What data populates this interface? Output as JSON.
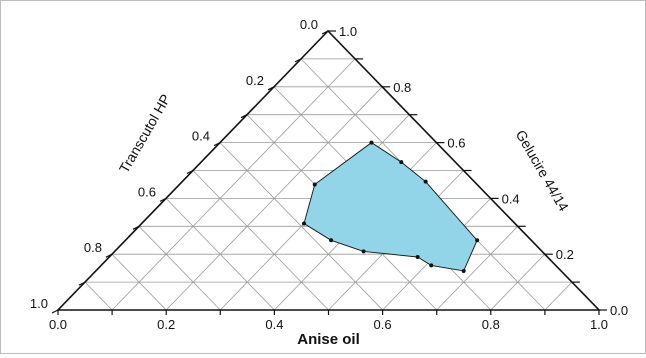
{
  "chart_data": {
    "type": "ternary",
    "axes": {
      "bottom": {
        "label": "Anise oil",
        "ticks": [
          "0.0",
          "0.2",
          "0.4",
          "0.6",
          "0.8",
          "1.0"
        ]
      },
      "left": {
        "label": "Transcutol HP",
        "ticks": [
          "0.0",
          "0.2",
          "0.4",
          "0.6",
          "0.8",
          "1.0"
        ]
      },
      "right": {
        "label": "Gelucire 44/14",
        "ticks": [
          "0.0",
          "0.2",
          "0.4",
          "0.6",
          "0.8",
          "1.0"
        ]
      }
    },
    "grid": true,
    "grid_step": 0.1,
    "region": {
      "fill_color": "#92d4e8",
      "points": [
        {
          "anise_oil": 0.25,
          "transcutol_hp": 0.3,
          "gelucire_44_14": 0.45
        },
        {
          "anise_oil": 0.3,
          "transcutol_hp": 0.39,
          "gelucire_44_14": 0.31
        },
        {
          "anise_oil": 0.38,
          "transcutol_hp": 0.37,
          "gelucire_44_14": 0.25
        },
        {
          "anise_oil": 0.46,
          "transcutol_hp": 0.33,
          "gelucire_44_14": 0.21
        },
        {
          "anise_oil": 0.57,
          "transcutol_hp": 0.24,
          "gelucire_44_14": 0.19
        },
        {
          "anise_oil": 0.61,
          "transcutol_hp": 0.23,
          "gelucire_44_14": 0.16
        },
        {
          "anise_oil": 0.68,
          "transcutol_hp": 0.18,
          "gelucire_44_14": 0.14
        },
        {
          "anise_oil": 0.65,
          "transcutol_hp": 0.1,
          "gelucire_44_14": 0.25
        },
        {
          "anise_oil": 0.45,
          "transcutol_hp": 0.09,
          "gelucire_44_14": 0.46
        },
        {
          "anise_oil": 0.37,
          "transcutol_hp": 0.1,
          "gelucire_44_14": 0.53
        },
        {
          "anise_oil": 0.28,
          "transcutol_hp": 0.12,
          "gelucire_44_14": 0.6
        }
      ]
    }
  }
}
